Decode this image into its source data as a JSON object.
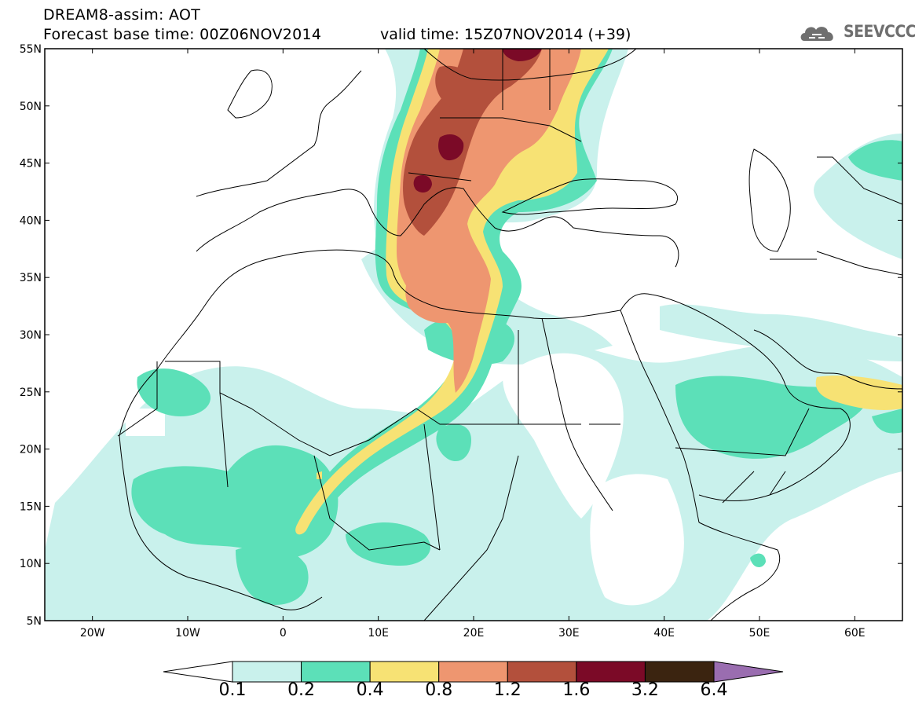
{
  "header": {
    "title_line1": "DREAM8-assim: AOT",
    "title_line2": "Forecast base time: 00Z06NOV2014",
    "valid_time": "valid time: 15Z07NOV2014 (+39)"
  },
  "logo": {
    "text": "SEEVCCC",
    "icon": "cloud-logo-icon"
  },
  "map": {
    "lat_labels": [
      "55N",
      "50N",
      "45N",
      "40N",
      "35N",
      "30N",
      "25N",
      "20N",
      "15N",
      "10N",
      "5N"
    ],
    "lon_labels": [
      "20W",
      "10W",
      "0",
      "10E",
      "20E",
      "30E",
      "40E",
      "50E",
      "60E"
    ],
    "extent": {
      "lon_min": -25,
      "lon_max": 65,
      "lat_min": 5,
      "lat_max": 55
    }
  },
  "colorbar": {
    "labels": [
      "0.1",
      "0.2",
      "0.4",
      "0.8",
      "1.2",
      "1.6",
      "3.2",
      "6.4"
    ],
    "colors": [
      "#ffffff",
      "#c9f1ec",
      "#5ce0b8",
      "#f7e274",
      "#ee9670",
      "#b3503c",
      "#7b0a27",
      "#3b2410",
      "#9a6db0"
    ]
  }
}
